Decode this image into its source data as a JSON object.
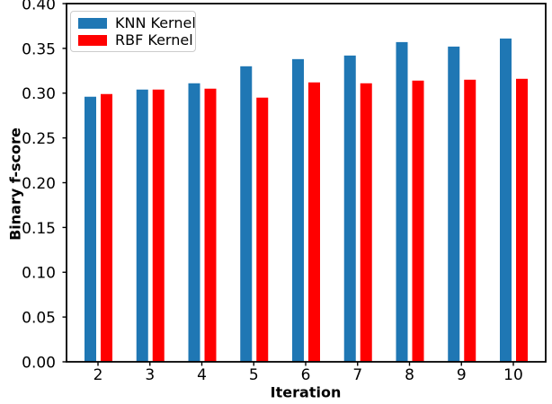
{
  "chart_data": {
    "type": "bar",
    "title": "",
    "xlabel": "Iteration",
    "ylabel": "Binary f-score",
    "categories": [
      "2",
      "3",
      "4",
      "5",
      "6",
      "7",
      "8",
      "9",
      "10"
    ],
    "series": [
      {
        "name": "KNN Kernel",
        "color": "#1f77b4",
        "values": [
          0.296,
          0.304,
          0.311,
          0.33,
          0.338,
          0.342,
          0.357,
          0.352,
          0.361
        ]
      },
      {
        "name": "RBF Kernel",
        "color": "#ff0000",
        "values": [
          0.299,
          0.304,
          0.305,
          0.295,
          0.312,
          0.311,
          0.314,
          0.315,
          0.316
        ]
      }
    ],
    "ylim": [
      0.0,
      0.4
    ],
    "yticks": [
      "0.00",
      "0.05",
      "0.10",
      "0.15",
      "0.20",
      "0.25",
      "0.30",
      "0.35",
      "0.40"
    ],
    "legend_position": "upper left",
    "grid": false,
    "background_color": "#ffffff",
    "axis_color": "#000000"
  }
}
